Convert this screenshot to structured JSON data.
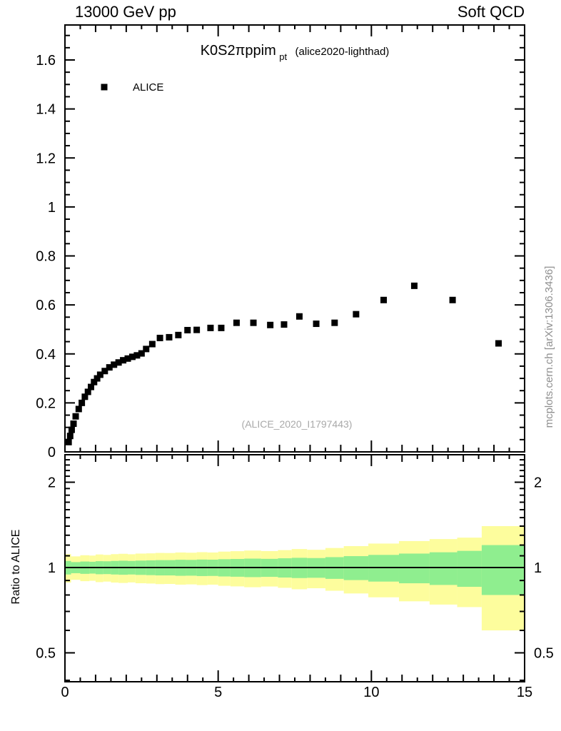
{
  "header": {
    "beam": "13000 GeV pp",
    "process_group": "Soft QCD"
  },
  "title": {
    "observable": "K0S2πppim",
    "subscript": "pt",
    "analysis": "(alice2020-lighthad)"
  },
  "legend": [
    {
      "label": "ALICE",
      "marker": "filled-square",
      "color": "#000000"
    }
  ],
  "watermark": "(ALICE_2020_I1797443)",
  "side_note": "mcplots.cern.ch [arXiv:1306.3436]",
  "colors": {
    "marker": "#000000",
    "outer_band": "#fdfd9d",
    "inner_band": "#8fee8f",
    "axis": "#000000",
    "reference_line": "#000000",
    "watermark_text": "#a9a9a9",
    "side_note_text": "#8f8f8f"
  },
  "chart_data": [
    {
      "type": "scatter",
      "panel": "spectrum",
      "title": "K0S2πppim_pt (alice2020-lighthad)",
      "legend_position": "top-left",
      "grid": false,
      "xlim": [
        0,
        15
      ],
      "ylim": [
        0,
        1.74
      ],
      "x_axis": {
        "major_ticks": [
          0,
          5,
          10,
          15
        ],
        "medium_step": 1,
        "minor_step": 0.5,
        "labels_shown": false
      },
      "y_axis": {
        "major_ticks": [
          0,
          0.2,
          0.4,
          0.6,
          0.8,
          1,
          1.2,
          1.4,
          1.6
        ],
        "tick_labels": [
          "0",
          "0.2",
          "0.4",
          "0.6",
          "0.8",
          "1",
          "1.2",
          "1.4",
          "1.6"
        ],
        "minor_step": 0.05
      },
      "series": [
        {
          "name": "ALICE",
          "marker": "filled-square",
          "color": "#000000",
          "points": [
            [
              0.12,
              0.04
            ],
            [
              0.17,
              0.065
            ],
            [
              0.22,
              0.09
            ],
            [
              0.28,
              0.115
            ],
            [
              0.35,
              0.145
            ],
            [
              0.45,
              0.175
            ],
            [
              0.55,
              0.2
            ],
            [
              0.65,
              0.225
            ],
            [
              0.75,
              0.245
            ],
            [
              0.85,
              0.265
            ],
            [
              0.95,
              0.285
            ],
            [
              1.05,
              0.3
            ],
            [
              1.15,
              0.315
            ],
            [
              1.3,
              0.33
            ],
            [
              1.45,
              0.345
            ],
            [
              1.6,
              0.356
            ],
            [
              1.75,
              0.365
            ],
            [
              1.9,
              0.374
            ],
            [
              2.05,
              0.381
            ],
            [
              2.2,
              0.388
            ],
            [
              2.35,
              0.394
            ],
            [
              2.5,
              0.402
            ],
            [
              2.65,
              0.42
            ],
            [
              2.85,
              0.44
            ],
            [
              3.1,
              0.465
            ],
            [
              3.4,
              0.468
            ],
            [
              3.7,
              0.477
            ],
            [
              4.0,
              0.497
            ],
            [
              4.3,
              0.498
            ],
            [
              4.75,
              0.506
            ],
            [
              5.1,
              0.506
            ],
            [
              5.6,
              0.527
            ],
            [
              6.15,
              0.527
            ],
            [
              6.7,
              0.518
            ],
            [
              7.15,
              0.52
            ],
            [
              7.65,
              0.553
            ],
            [
              8.2,
              0.523
            ],
            [
              8.8,
              0.527
            ],
            [
              9.5,
              0.562
            ],
            [
              10.4,
              0.62
            ],
            [
              11.4,
              0.678
            ],
            [
              12.65,
              0.62
            ],
            [
              14.15,
              0.443
            ]
          ]
        }
      ]
    },
    {
      "type": "area",
      "panel": "ratio",
      "ylabel": "Ratio to ALICE",
      "yscale": "log",
      "xlim": [
        0,
        15
      ],
      "ylim": [
        0.395,
        2.5
      ],
      "reference_line": 1.0,
      "x_axis": {
        "major_ticks": [
          0,
          5,
          10,
          15
        ],
        "tick_labels": [
          "0",
          "5",
          "10",
          "15"
        ],
        "medium_step": 1,
        "minor_step": 0.5
      },
      "y_axis": {
        "major_ticks": [
          0.5,
          1,
          2
        ],
        "tick_labels": [
          "0.5",
          "1",
          "2"
        ],
        "minor_ticks": [
          0.4,
          0.6,
          0.7,
          0.8,
          0.9,
          1.1,
          1.2,
          1.3,
          1.4,
          1.5,
          1.6,
          1.7,
          1.8,
          1.9,
          2.1,
          2.2,
          2.3,
          2.4
        ]
      },
      "band_bin_edges": [
        0,
        0.2,
        0.5,
        0.8,
        1.0,
        1.25,
        1.5,
        1.75,
        2.05,
        2.3,
        2.65,
        2.95,
        3.25,
        3.6,
        3.95,
        4.3,
        4.65,
        5.0,
        5.4,
        5.85,
        6.4,
        6.95,
        7.4,
        7.9,
        8.5,
        9.1,
        9.9,
        10.9,
        11.9,
        12.8,
        13.6,
        15.0
      ],
      "outer_band_halfwidth": [
        0.115,
        0.095,
        0.105,
        0.102,
        0.112,
        0.108,
        0.115,
        0.118,
        0.114,
        0.12,
        0.122,
        0.126,
        0.125,
        0.13,
        0.128,
        0.133,
        0.13,
        0.138,
        0.142,
        0.148,
        0.143,
        0.152,
        0.162,
        0.155,
        0.172,
        0.19,
        0.215,
        0.24,
        0.26,
        0.275,
        0.4
      ],
      "inner_band_halfwidth": [
        0.055,
        0.045,
        0.05,
        0.048,
        0.053,
        0.052,
        0.055,
        0.057,
        0.055,
        0.058,
        0.06,
        0.062,
        0.062,
        0.065,
        0.064,
        0.067,
        0.066,
        0.07,
        0.072,
        0.075,
        0.073,
        0.078,
        0.082,
        0.08,
        0.088,
        0.097,
        0.108,
        0.12,
        0.132,
        0.145,
        0.2
      ]
    }
  ]
}
